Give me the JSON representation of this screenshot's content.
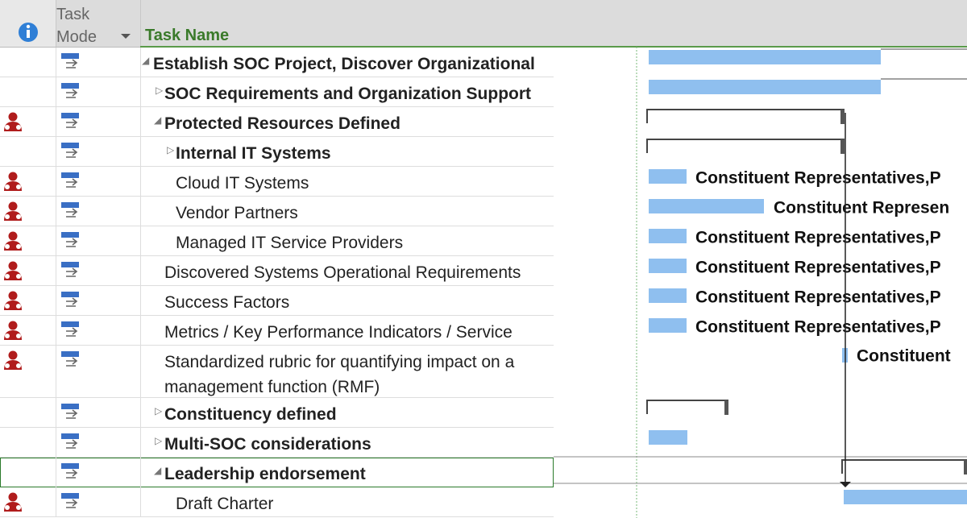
{
  "header": {
    "task_mode": "Task Mode",
    "task_name": "Task Name"
  },
  "rows": [
    {
      "name": "Establish SOC Project, Discover Organizational"
    },
    {
      "name": "SOC Requirements and Organization Support"
    },
    {
      "name": "Protected Resources Defined"
    },
    {
      "name": "Internal IT Systems"
    },
    {
      "name": "Cloud IT Systems",
      "resource": "Constituent Representatives,P"
    },
    {
      "name": "Vendor Partners",
      "resource": "Constituent Represen"
    },
    {
      "name": "Managed IT Service Providers",
      "resource": "Constituent Representatives,P"
    },
    {
      "name": "Discovered Systems Operational Requirements",
      "resource": "Constituent Representatives,P"
    },
    {
      "name": "Success Factors",
      "resource": "Constituent Representatives,P"
    },
    {
      "name": "Metrics / Key Performance Indicators / Service",
      "resource": "Constituent Representatives,P"
    },
    {
      "name": "Standardized rubric for quantifying impact on a management function (RMF)",
      "resource": "Constituent"
    },
    {
      "name": "Constituency defined"
    },
    {
      "name": "Multi-SOC considerations"
    },
    {
      "name": "Leadership endorsement"
    },
    {
      "name": "Draft Charter"
    }
  ]
}
